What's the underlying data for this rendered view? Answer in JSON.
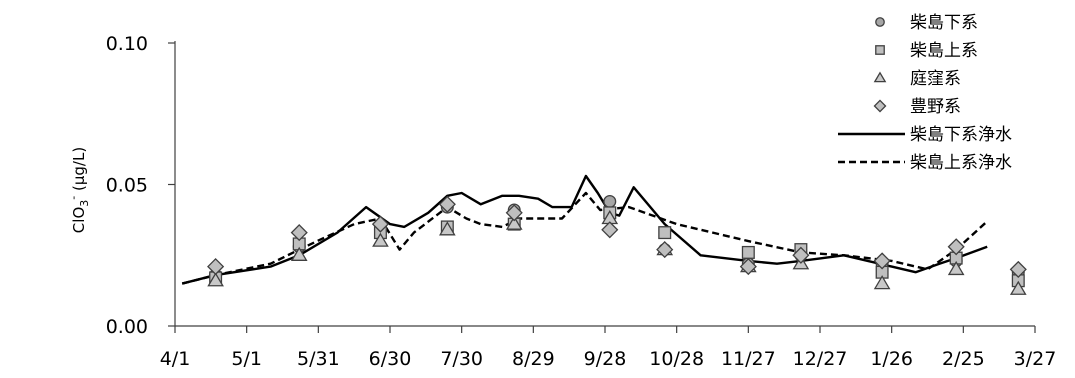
{
  "chart_data": {
    "type": "line",
    "title": "",
    "xlabel": "",
    "ylabel": {
      "base": "ClO",
      "sub": "3",
      "sup": "-",
      "unit": " (µg/L)"
    },
    "xlim": [
      0,
      360
    ],
    "ylim": [
      0,
      0.1
    ],
    "x_ticks": [
      {
        "x": 0,
        "label": "4/1"
      },
      {
        "x": 30,
        "label": "5/1"
      },
      {
        "x": 60,
        "label": "5/31"
      },
      {
        "x": 90,
        "label": "6/30"
      },
      {
        "x": 120,
        "label": "7/30"
      },
      {
        "x": 150,
        "label": "8/29"
      },
      {
        "x": 180,
        "label": "9/28"
      },
      {
        "x": 210,
        "label": "10/28"
      },
      {
        "x": 240,
        "label": "11/27"
      },
      {
        "x": 270,
        "label": "12/27"
      },
      {
        "x": 300,
        "label": "1/26"
      },
      {
        "x": 330,
        "label": "2/25"
      },
      {
        "x": 360,
        "label": "3/27"
      }
    ],
    "y_ticks": [
      {
        "y": 0,
        "label": "0.00"
      },
      {
        "y": 0.05,
        "label": "0.05"
      },
      {
        "y": 0.1,
        "label": "0.10"
      }
    ],
    "grid": false,
    "legend_position": "top-right",
    "series": [
      {
        "name": "柴島下系",
        "kind": "marker",
        "marker": "circle",
        "fill": "#a6a6a6",
        "points": [
          [
            17,
            0.018
          ],
          [
            52,
            0.028
          ],
          [
            86,
            0.034
          ],
          [
            114,
            0.042
          ],
          [
            142,
            0.041
          ],
          [
            182,
            0.044
          ],
          [
            205,
            0.027
          ],
          [
            240,
            0.022
          ],
          [
            262,
            0.025
          ],
          [
            296,
            0.022
          ],
          [
            327,
            0.023
          ],
          [
            353,
            0.019
          ]
        ]
      },
      {
        "name": "柴島上系",
        "kind": "marker",
        "marker": "square",
        "fill": "#bfbfbf",
        "points": [
          [
            17,
            0.017
          ],
          [
            52,
            0.029
          ],
          [
            86,
            0.033
          ],
          [
            114,
            0.035
          ],
          [
            142,
            0.036
          ],
          [
            182,
            0.04
          ],
          [
            205,
            0.033
          ],
          [
            240,
            0.026
          ],
          [
            262,
            0.027
          ],
          [
            296,
            0.019
          ],
          [
            327,
            0.024
          ],
          [
            353,
            0.016
          ]
        ]
      },
      {
        "name": "庭窪系",
        "kind": "marker",
        "marker": "triangle",
        "fill": "#c8c8c8",
        "points": [
          [
            17,
            0.016
          ],
          [
            52,
            0.025
          ],
          [
            86,
            0.03
          ],
          [
            114,
            0.034
          ],
          [
            142,
            0.036
          ],
          [
            182,
            0.038
          ],
          [
            205,
            0.027
          ],
          [
            240,
            0.021
          ],
          [
            262,
            0.022
          ],
          [
            296,
            0.015
          ],
          [
            327,
            0.02
          ],
          [
            353,
            0.013
          ]
        ]
      },
      {
        "name": "豊野系",
        "kind": "marker",
        "marker": "diamond",
        "fill": "#bfbfbf",
        "points": [
          [
            17,
            0.021
          ],
          [
            52,
            0.033
          ],
          [
            86,
            0.036
          ],
          [
            114,
            0.043
          ],
          [
            142,
            0.04
          ],
          [
            182,
            0.034
          ],
          [
            205,
            0.027
          ],
          [
            240,
            0.021
          ],
          [
            262,
            0.025
          ],
          [
            296,
            0.023
          ],
          [
            327,
            0.028
          ],
          [
            353,
            0.02
          ]
        ]
      },
      {
        "name": "柴島下系浄水",
        "kind": "line",
        "dash": "solid",
        "points": [
          [
            3,
            0.015
          ],
          [
            17,
            0.018
          ],
          [
            40,
            0.021
          ],
          [
            52,
            0.025
          ],
          [
            68,
            0.033
          ],
          [
            80,
            0.042
          ],
          [
            90,
            0.036
          ],
          [
            96,
            0.035
          ],
          [
            106,
            0.04
          ],
          [
            114,
            0.046
          ],
          [
            120,
            0.047
          ],
          [
            128,
            0.043
          ],
          [
            137,
            0.046
          ],
          [
            144,
            0.046
          ],
          [
            152,
            0.045
          ],
          [
            158,
            0.042
          ],
          [
            166,
            0.042
          ],
          [
            172,
            0.053
          ],
          [
            177,
            0.047
          ],
          [
            182,
            0.04
          ],
          [
            186,
            0.039
          ],
          [
            192,
            0.049
          ],
          [
            205,
            0.036
          ],
          [
            220,
            0.025
          ],
          [
            240,
            0.023
          ],
          [
            252,
            0.022
          ],
          [
            262,
            0.023
          ],
          [
            280,
            0.025
          ],
          [
            290,
            0.023
          ],
          [
            300,
            0.021
          ],
          [
            310,
            0.019
          ],
          [
            320,
            0.022
          ],
          [
            327,
            0.024
          ],
          [
            340,
            0.028
          ]
        ]
      },
      {
        "name": "柴島上系浄水",
        "kind": "line",
        "dash": "dashed",
        "points": [
          [
            3,
            0.015
          ],
          [
            17,
            0.018
          ],
          [
            40,
            0.022
          ],
          [
            52,
            0.027
          ],
          [
            62,
            0.031
          ],
          [
            75,
            0.036
          ],
          [
            86,
            0.038
          ],
          [
            94,
            0.027
          ],
          [
            100,
            0.033
          ],
          [
            114,
            0.042
          ],
          [
            122,
            0.038
          ],
          [
            128,
            0.036
          ],
          [
            137,
            0.035
          ],
          [
            144,
            0.038
          ],
          [
            156,
            0.038
          ],
          [
            162,
            0.038
          ],
          [
            172,
            0.047
          ],
          [
            178,
            0.041
          ],
          [
            190,
            0.042
          ],
          [
            210,
            0.036
          ],
          [
            230,
            0.032
          ],
          [
            240,
            0.03
          ],
          [
            262,
            0.026
          ],
          [
            280,
            0.025
          ],
          [
            300,
            0.023
          ],
          [
            315,
            0.02
          ],
          [
            327,
            0.027
          ],
          [
            340,
            0.037
          ]
        ]
      }
    ]
  }
}
